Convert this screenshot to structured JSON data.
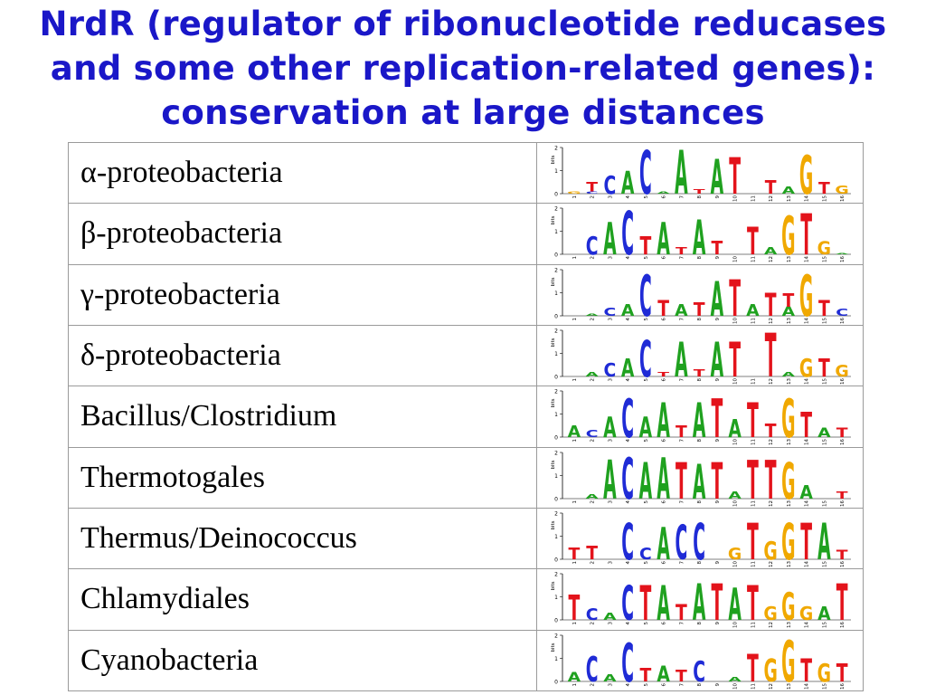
{
  "title": {
    "line1": "NrdR (regulator of ribonucleotide reducases",
    "line2": "and some other replication-related genes):",
    "line3": "conservation at large distances"
  },
  "logo_axis": {
    "ylabel": "bits",
    "ymax": "2",
    "ymid": "1",
    "ymin": "0"
  },
  "colors": {
    "A": "#1fa11f",
    "C": "#1f2bd6",
    "G": "#f0a800",
    "T": "#e3131b"
  },
  "rows": [
    {
      "organism": "α-proteobacteria",
      "positions": 16,
      "motif": [
        [
          [
            "G",
            0.1
          ]
        ],
        [
          [
            "T",
            0.4
          ],
          [
            "C",
            0.1
          ]
        ],
        [
          [
            "C",
            0.8
          ]
        ],
        [
          [
            "A",
            1.0
          ]
        ],
        [
          [
            "C",
            1.9
          ]
        ],
        [
          [
            "A",
            0.1
          ]
        ],
        [
          [
            "A",
            1.9
          ]
        ],
        [
          [
            "T",
            0.2
          ]
        ],
        [
          [
            "A",
            1.5
          ]
        ],
        [
          [
            "T",
            1.6
          ]
        ],
        [],
        [
          [
            "T",
            0.6
          ]
        ],
        [
          [
            "A",
            0.3
          ]
        ],
        [
          [
            "G",
            1.7
          ]
        ],
        [
          [
            "T",
            0.5
          ]
        ],
        [
          [
            "G",
            0.35
          ]
        ]
      ]
    },
    {
      "organism": "β-proteobacteria",
      "positions": 16,
      "motif": [
        [],
        [
          [
            "C",
            0.8
          ]
        ],
        [
          [
            "A",
            1.4
          ]
        ],
        [
          [
            "C",
            1.9
          ]
        ],
        [
          [
            "T",
            0.8
          ]
        ],
        [
          [
            "A",
            1.4
          ]
        ],
        [
          [
            "T",
            0.3
          ]
        ],
        [
          [
            "A",
            1.5
          ]
        ],
        [
          [
            "T",
            0.6
          ]
        ],
        [],
        [
          [
            "T",
            1.2
          ]
        ],
        [
          [
            "A",
            0.3
          ]
        ],
        [
          [
            "G",
            1.7
          ]
        ],
        [
          [
            "T",
            1.8
          ]
        ],
        [
          [
            "G",
            0.55
          ]
        ],
        [
          [
            "A",
            0.05
          ]
        ]
      ]
    },
    {
      "organism": "γ-proteobacteria",
      "positions": 16,
      "motif": [
        [],
        [
          [
            "A",
            0.1
          ]
        ],
        [
          [
            "C",
            0.35
          ]
        ],
        [
          [
            "A",
            0.5
          ]
        ],
        [
          [
            "C",
            1.8
          ]
        ],
        [
          [
            "T",
            0.7
          ]
        ],
        [
          [
            "A",
            0.5
          ]
        ],
        [
          [
            "T",
            0.6
          ]
        ],
        [
          [
            "A",
            1.5
          ]
        ],
        [
          [
            "T",
            1.6
          ]
        ],
        [
          [
            "A",
            0.5
          ]
        ],
        [
          [
            "T",
            1.0
          ]
        ],
        [
          [
            "T",
            0.6
          ],
          [
            "A",
            0.4
          ]
        ],
        [
          [
            "G",
            1.8
          ]
        ],
        [
          [
            "T",
            0.7
          ]
        ],
        [
          [
            "C",
            0.3
          ]
        ]
      ]
    },
    {
      "organism": "δ-proteobacteria",
      "positions": 16,
      "motif": [
        [],
        [
          [
            "A",
            0.2
          ]
        ],
        [
          [
            "C",
            0.6
          ]
        ],
        [
          [
            "A",
            0.8
          ]
        ],
        [
          [
            "C",
            1.6
          ]
        ],
        [
          [
            "T",
            0.2
          ]
        ],
        [
          [
            "A",
            1.5
          ]
        ],
        [
          [
            "T",
            0.3
          ]
        ],
        [
          [
            "A",
            1.5
          ]
        ],
        [
          [
            "T",
            1.5
          ]
        ],
        [],
        [
          [
            "T",
            1.9
          ]
        ],
        [
          [
            "A",
            0.2
          ]
        ],
        [
          [
            "G",
            0.8
          ]
        ],
        [
          [
            "T",
            0.8
          ]
        ],
        [
          [
            "G",
            0.5
          ]
        ]
      ]
    },
    {
      "organism": "Bacillus/Clostridium",
      "positions": 16,
      "motif": [
        [
          [
            "A",
            0.5
          ]
        ],
        [
          [
            "C",
            0.3
          ]
        ],
        [
          [
            "A",
            0.9
          ]
        ],
        [
          [
            "C",
            1.7
          ]
        ],
        [
          [
            "A",
            0.9
          ]
        ],
        [
          [
            "A",
            1.5
          ]
        ],
        [
          [
            "T",
            0.5
          ]
        ],
        [
          [
            "A",
            1.5
          ]
        ],
        [
          [
            "T",
            1.7
          ]
        ],
        [
          [
            "A",
            0.8
          ]
        ],
        [
          [
            "T",
            1.5
          ]
        ],
        [
          [
            "T",
            0.6
          ]
        ],
        [
          [
            "G",
            1.7
          ]
        ],
        [
          [
            "T",
            1.1
          ]
        ],
        [
          [
            "A",
            0.4
          ]
        ],
        [
          [
            "T",
            0.4
          ]
        ]
      ]
    },
    {
      "organism": "Thermotogales",
      "positions": 16,
      "motif": [
        [],
        [
          [
            "A",
            0.2
          ]
        ],
        [
          [
            "A",
            1.7
          ]
        ],
        [
          [
            "C",
            1.8
          ]
        ],
        [
          [
            "A",
            1.6
          ]
        ],
        [
          [
            "A",
            1.8
          ]
        ],
        [
          [
            "T",
            1.6
          ]
        ],
        [
          [
            "A",
            1.5
          ]
        ],
        [
          [
            "T",
            1.6
          ]
        ],
        [
          [
            "A",
            0.3
          ]
        ],
        [
          [
            "T",
            1.7
          ]
        ],
        [
          [
            "T",
            1.7
          ]
        ],
        [
          [
            "G",
            1.6
          ]
        ],
        [
          [
            "A",
            0.6
          ]
        ],
        [],
        [
          [
            "T",
            0.3
          ]
        ]
      ]
    },
    {
      "organism": "Thermus/Deinococcus",
      "positions": 16,
      "motif": [
        [
          [
            "T",
            0.5
          ]
        ],
        [
          [
            "T",
            0.6
          ]
        ],
        [],
        [
          [
            "C",
            1.6
          ]
        ],
        [
          [
            "C",
            0.5
          ]
        ],
        [
          [
            "A",
            1.4
          ]
        ],
        [
          [
            "C",
            1.5
          ]
        ],
        [
          [
            "C",
            1.6
          ]
        ],
        [],
        [
          [
            "G",
            0.5
          ]
        ],
        [
          [
            "T",
            1.6
          ]
        ],
        [
          [
            "G",
            0.8
          ]
        ],
        [
          [
            "G",
            1.6
          ]
        ],
        [
          [
            "T",
            1.6
          ]
        ],
        [
          [
            "A",
            1.6
          ]
        ],
        [
          [
            "T",
            0.4
          ]
        ]
      ]
    },
    {
      "organism": "Chlamydiales",
      "positions": 16,
      "motif": [
        [
          [
            "T",
            1.1
          ]
        ],
        [
          [
            "C",
            0.5
          ]
        ],
        [
          [
            "A",
            0.3
          ]
        ],
        [
          [
            "C",
            1.5
          ]
        ],
        [
          [
            "T",
            1.5
          ]
        ],
        [
          [
            "A",
            1.5
          ]
        ],
        [
          [
            "T",
            0.7
          ]
        ],
        [
          [
            "A",
            1.6
          ]
        ],
        [
          [
            "T",
            1.6
          ]
        ],
        [
          [
            "A",
            1.4
          ]
        ],
        [
          [
            "T",
            1.5
          ]
        ],
        [
          [
            "G",
            0.6
          ]
        ],
        [
          [
            "G",
            1.2
          ]
        ],
        [
          [
            "G",
            0.6
          ]
        ],
        [
          [
            "A",
            0.6
          ]
        ],
        [
          [
            "T",
            1.6
          ]
        ]
      ]
    },
    {
      "organism": "Cyanobacteria",
      "positions": 16,
      "motif": [
        [
          [
            "A",
            0.4
          ]
        ],
        [
          [
            "C",
            1.1
          ]
        ],
        [
          [
            "A",
            0.3
          ]
        ],
        [
          [
            "C",
            1.7
          ]
        ],
        [
          [
            "T",
            0.6
          ]
        ],
        [
          [
            "A",
            0.7
          ]
        ],
        [
          [
            "T",
            0.5
          ]
        ],
        [
          [
            "C",
            0.9
          ]
        ],
        [],
        [
          [
            "A",
            0.2
          ]
        ],
        [
          [
            "T",
            1.2
          ]
        ],
        [
          [
            "G",
            1.0
          ]
        ],
        [
          [
            "G",
            1.8
          ]
        ],
        [
          [
            "T",
            1.0
          ]
        ],
        [
          [
            "G",
            0.8
          ]
        ],
        [
          [
            "T",
            0.8
          ]
        ]
      ]
    }
  ]
}
